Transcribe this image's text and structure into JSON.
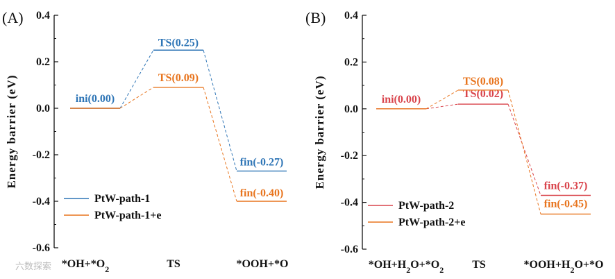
{
  "colors": {
    "blue": "#2E75B6",
    "orange": "#E8741D",
    "red": "#D9434B",
    "axis": "#111111"
  },
  "watermark": "六数探索",
  "chart_data": [
    {
      "panel": "(A)",
      "type": "line",
      "ylabel": "Energy barrier (eV)",
      "ylim": [
        -0.6,
        0.4
      ],
      "yticks": [
        0.4,
        0.2,
        0.0,
        -0.2,
        -0.4,
        -0.6
      ],
      "ytick_labels": [
        "0.4",
        "0.2",
        "0.0",
        "-0.2",
        "-0.4",
        "-0.6"
      ],
      "categories": [
        "*OH+*O<sub>2</sub>",
        "TS",
        "*OOH+*O"
      ],
      "legend_position": "bottom-left",
      "series": [
        {
          "name": "PtW-path-1",
          "color": "#2E75B6",
          "values": [
            0.0,
            0.25,
            -0.27
          ],
          "labels": [
            "ini(0.00)",
            "TS(0.25)",
            "fin(-0.27)"
          ]
        },
        {
          "name": "PtW-path-1+e",
          "color": "#E8741D",
          "values": [
            0.0,
            0.09,
            -0.4
          ],
          "labels": [
            "",
            "TS(0.09)",
            "fin(-0.40)"
          ]
        }
      ]
    },
    {
      "panel": "(B)",
      "type": "line",
      "ylabel": "Energy barrier (eV)",
      "ylim": [
        -0.6,
        0.4
      ],
      "yticks": [
        0.4,
        0.2,
        0.0,
        -0.2,
        -0.4,
        -0.6
      ],
      "ytick_labels": [
        "0.4",
        "0.2",
        "0.0",
        "-0.2",
        "-0.4",
        "-0.6"
      ],
      "categories": [
        "*OH+H<sub>2</sub>O+*O<sub>2</sub>",
        "TS",
        "*OOH+H<sub>2</sub>O+*O"
      ],
      "legend_position": "bottom-left",
      "series": [
        {
          "name": "PtW-path-2",
          "color": "#D9434B",
          "values": [
            0.0,
            0.02,
            -0.37
          ],
          "labels": [
            "ini(0.00)",
            "TS(0.02)",
            "fin(-0.37)"
          ]
        },
        {
          "name": "PtW-path-2+e",
          "color": "#E8741D",
          "values": [
            0.0,
            0.08,
            -0.45
          ],
          "labels": [
            "",
            "TS(0.08)",
            "fin(-0.45)"
          ]
        }
      ]
    }
  ]
}
